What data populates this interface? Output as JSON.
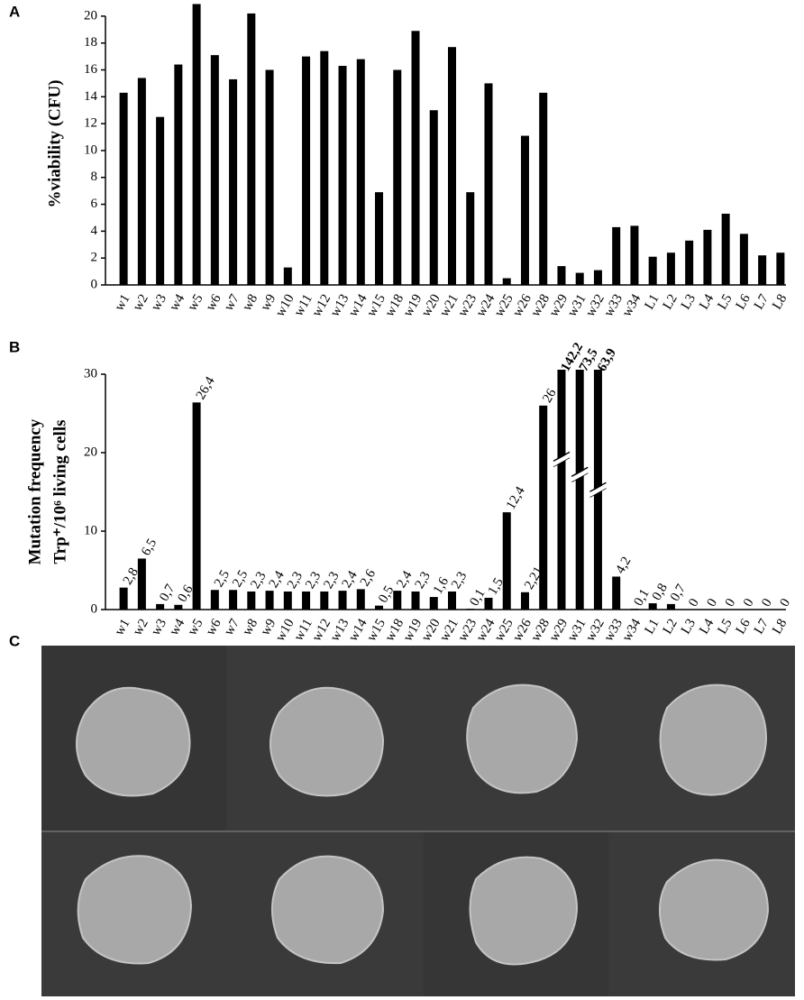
{
  "panel_labels": [
    "A",
    "B",
    "C"
  ],
  "chart_data": [
    {
      "type": "bar",
      "ylabel": "%viability (CFU)",
      "categories": [
        "w1",
        "w2",
        "w3",
        "w4",
        "w5",
        "w6",
        "w7",
        "w8",
        "w9",
        "w10",
        "w11",
        "w12",
        "w13",
        "w14",
        "w15",
        "w18",
        "w19",
        "w20",
        "w21",
        "w23",
        "w24",
        "w25",
        "w26",
        "w28",
        "w29",
        "w31",
        "w32",
        "w33",
        "w34",
        "L1",
        "L2",
        "L3",
        "L4",
        "L5",
        "L6",
        "L7",
        "L8"
      ],
      "values": [
        14.3,
        15.4,
        12.5,
        16.4,
        20.9,
        17.1,
        15.3,
        20.2,
        16,
        1.3,
        17,
        17.4,
        16.3,
        16.8,
        6.9,
        16,
        18.9,
        13,
        17.7,
        6.9,
        15,
        0.5,
        11.1,
        14.3,
        1.4,
        0.9,
        1.1,
        4.3,
        4.4,
        2.1,
        2.4,
        3.3,
        4.1,
        5.3,
        3.8,
        2.2,
        2.4
      ],
      "color": "#000000",
      "ylim": [
        0,
        21
      ],
      "yticks": [
        0,
        2,
        4,
        6,
        8,
        10,
        12,
        14,
        16,
        18,
        20
      ]
    },
    {
      "type": "bar",
      "ylabel": [
        "Mutation frequency",
        "Trp⁺/10⁶ living cells"
      ],
      "categories": [
        "w1",
        "w2",
        "w3",
        "w4",
        "w5",
        "w6",
        "w7",
        "w8",
        "w9",
        "w10",
        "w11",
        "w12",
        "w13",
        "w14",
        "w15",
        "w18",
        "w19",
        "w20",
        "w21",
        "w23",
        "w24",
        "w25",
        "w26",
        "w28",
        "w29",
        "w31",
        "w32",
        "w33",
        "w34",
        "L1",
        "L2",
        "L3",
        "L4",
        "L5",
        "L6",
        "L7",
        "L8"
      ],
      "values": [
        2.8,
        6.5,
        0.7,
        0.6,
        26.4,
        2.5,
        2.5,
        2.3,
        2.4,
        2.3,
        2.3,
        2.3,
        2.4,
        2.6,
        0.5,
        2.4,
        2.3,
        1.6,
        2.3,
        0.1,
        1.5,
        12.4,
        2.21,
        26,
        142.2,
        73.5,
        63.9,
        4.2,
        0.1,
        0.8,
        0.7,
        0,
        0,
        0,
        0,
        0,
        0
      ],
      "value_labels": [
        "2,8",
        "6,5",
        "0,7",
        "0,6",
        "26,4",
        "2,5",
        "2,5",
        "2,3",
        "2,4",
        "2,3",
        "2,3",
        "2,3",
        "2,4",
        "2,6",
        "0,5",
        "2,4",
        "2,3",
        "1,6",
        "2,3",
        "0,1",
        "1,5",
        "12,4",
        "2,21",
        "26",
        "142,2",
        "73,5",
        "63,9",
        "4,2",
        "0,1",
        "0,8",
        "0,7",
        "0",
        "0",
        "0",
        "0",
        "0",
        "0"
      ],
      "color": "#000000",
      "ylim": [
        0,
        30
      ],
      "yticks": [
        0,
        10,
        20,
        30
      ]
    }
  ]
}
